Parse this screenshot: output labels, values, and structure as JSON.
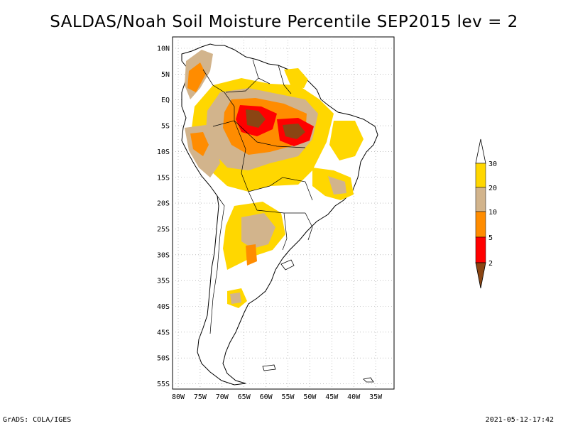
{
  "title": "SALDAS/Noah Soil Moisture Percentile SEP2015 lev = 2",
  "footer": {
    "left": "GrADS: COLA/IGES",
    "right": "2021-05-12-17:42"
  },
  "map": {
    "lat_labels": [
      "10N",
      "5N",
      "EQ",
      "5S",
      "10S",
      "15S",
      "20S",
      "25S",
      "30S",
      "35S",
      "40S",
      "45S",
      "50S",
      "55S"
    ],
    "lon_labels": [
      "80W",
      "75W",
      "70W",
      "65W",
      "60W",
      "55W",
      "50W",
      "45W",
      "40W",
      "35W"
    ]
  },
  "legend": {
    "labels": [
      "2",
      "5",
      "10",
      "20",
      "30"
    ],
    "colors": {
      "lt2": "#8b4513",
      "2to5": "#ff0000",
      "5to10": "#ff8c00",
      "10to20": "#d2b48c",
      "20to30": "#ffd700",
      "gt30": "#ffffff"
    }
  }
}
